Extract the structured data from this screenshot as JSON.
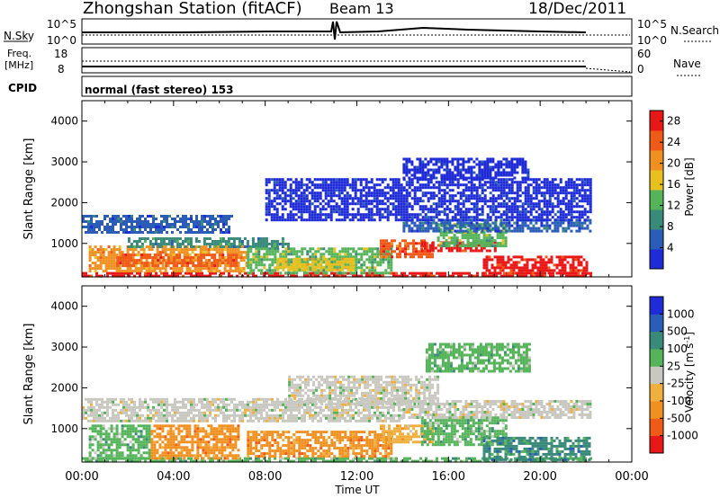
{
  "header": {
    "title": "Zhongshan Station (fitACF)",
    "beam": "Beam 13",
    "date": "18/Dec/2011"
  },
  "status_panels": {
    "nsky": {
      "label": "N.Sky",
      "ticks": [
        "10^5",
        "10^0"
      ]
    },
    "nsearch": {
      "label": "N.Search",
      "ticks": [
        "10^5",
        "10^0"
      ]
    },
    "freq": {
      "label_top": "Freq.",
      "label_unit": "[MHz]",
      "ticks": [
        "18",
        "8"
      ]
    },
    "nave": {
      "label": "Nave",
      "ticks": [
        "60",
        "0"
      ]
    },
    "cpid": {
      "label": "CPID",
      "value": "normal (fast stereo) 153"
    }
  },
  "colors": {
    "power": [
      "#1e2bd6",
      "#2a5cb8",
      "#3a8a7a",
      "#55b45a",
      "#e8c020",
      "#f09020",
      "#f05a18",
      "#e81818"
    ],
    "velocity": [
      "#e81818",
      "#f05a18",
      "#f09020",
      "#f0b040",
      "#c8c8c0",
      "#55b45a",
      "#3a8a7a",
      "#2a5cb8",
      "#1e2bd6"
    ],
    "scatter_nonground": "#000000"
  },
  "chart_data": [
    {
      "type": "heatmap",
      "name": "power",
      "ylabel": "Slant Range [km]",
      "xlim": [
        0,
        24
      ],
      "ylim": [
        180,
        4500
      ],
      "yticks": [
        "1000",
        "2000",
        "3000",
        "4000"
      ],
      "colorbar": {
        "label": "Power [dB]",
        "ticks": [
          "4",
          "8",
          "12",
          "16",
          "20",
          "24",
          "28"
        ],
        "range": [
          0,
          30
        ]
      },
      "regions": [
        {
          "t": [
            0.0,
            22.2
          ],
          "r": [
            180,
            300
          ],
          "level": 7
        },
        {
          "t": [
            0.3,
            7.2
          ],
          "r": [
            300,
            950
          ],
          "level": 5
        },
        {
          "t": [
            1.5,
            6.8
          ],
          "r": [
            450,
            750
          ],
          "level": 6
        },
        {
          "t": [
            0.0,
            6.5
          ],
          "r": [
            1300,
            1700
          ],
          "level": 1
        },
        {
          "t": [
            2.0,
            9.0
          ],
          "r": [
            950,
            1150
          ],
          "level": 2
        },
        {
          "t": [
            7.2,
            13.5
          ],
          "r": [
            300,
            900
          ],
          "level": 3
        },
        {
          "t": [
            8.5,
            11.8
          ],
          "r": [
            350,
            650
          ],
          "level": 4
        },
        {
          "t": [
            13.0,
            15.3
          ],
          "r": [
            700,
            1100
          ],
          "level": 6
        },
        {
          "t": [
            14.8,
            18.0
          ],
          "r": [
            800,
            1050
          ],
          "level": 7
        },
        {
          "t": [
            15.5,
            18.5
          ],
          "r": [
            950,
            1500
          ],
          "level": 3
        },
        {
          "t": [
            17.5,
            22.0
          ],
          "r": [
            300,
            700
          ],
          "level": 7
        },
        {
          "t": [
            14.0,
            22.2
          ],
          "r": [
            1300,
            1600
          ],
          "level": 1
        },
        {
          "t": [
            8.0,
            22.2
          ],
          "r": [
            1600,
            2600
          ],
          "level": 0
        },
        {
          "t": [
            14.0,
            19.5
          ],
          "r": [
            2600,
            3100
          ],
          "level": 0
        }
      ]
    },
    {
      "type": "heatmap",
      "name": "velocity",
      "xlabel": "Time UT",
      "ylabel": "Slant Range [km]",
      "xlim": [
        0,
        24
      ],
      "ylim": [
        180,
        4500
      ],
      "xticks": [
        "00:00",
        "04:00",
        "08:00",
        "12:00",
        "16:00",
        "20:00",
        "00:00"
      ],
      "yticks": [
        "1000",
        "2000",
        "3000",
        "4000"
      ],
      "colorbar": {
        "label": "Velocity [m s",
        "label_superscript": "-1",
        "label_close": "]",
        "ticks": [
          "1000",
          "500",
          "100",
          "25",
          "-25",
          "-100",
          "-500",
          "-1000"
        ]
      },
      "regions": [
        {
          "t": [
            0.0,
            22.2
          ],
          "r": [
            180,
            300
          ],
          "level": 5
        },
        {
          "t": [
            0.3,
            3.0
          ],
          "r": [
            300,
            1100
          ],
          "level": 5
        },
        {
          "t": [
            3.0,
            6.8
          ],
          "r": [
            300,
            1100
          ],
          "level": 2
        },
        {
          "t": [
            7.2,
            13.5
          ],
          "r": [
            300,
            950
          ],
          "level": 2
        },
        {
          "t": [
            0.0,
            14.0
          ],
          "r": [
            1200,
            1750
          ],
          "level": 4
        },
        {
          "t": [
            9.0,
            15.5
          ],
          "r": [
            1600,
            2300
          ],
          "level": 4
        },
        {
          "t": [
            13.0,
            15.3
          ],
          "r": [
            700,
            1100
          ],
          "level": 3
        },
        {
          "t": [
            14.8,
            18.5
          ],
          "r": [
            600,
            1300
          ],
          "level": 5
        },
        {
          "t": [
            17.5,
            22.2
          ],
          "r": [
            250,
            800
          ],
          "level": 6
        },
        {
          "t": [
            14.0,
            22.2
          ],
          "r": [
            1250,
            1700
          ],
          "level": 4
        },
        {
          "t": [
            15.0,
            19.5
          ],
          "r": [
            2400,
            3100
          ],
          "level": 5
        }
      ]
    }
  ]
}
